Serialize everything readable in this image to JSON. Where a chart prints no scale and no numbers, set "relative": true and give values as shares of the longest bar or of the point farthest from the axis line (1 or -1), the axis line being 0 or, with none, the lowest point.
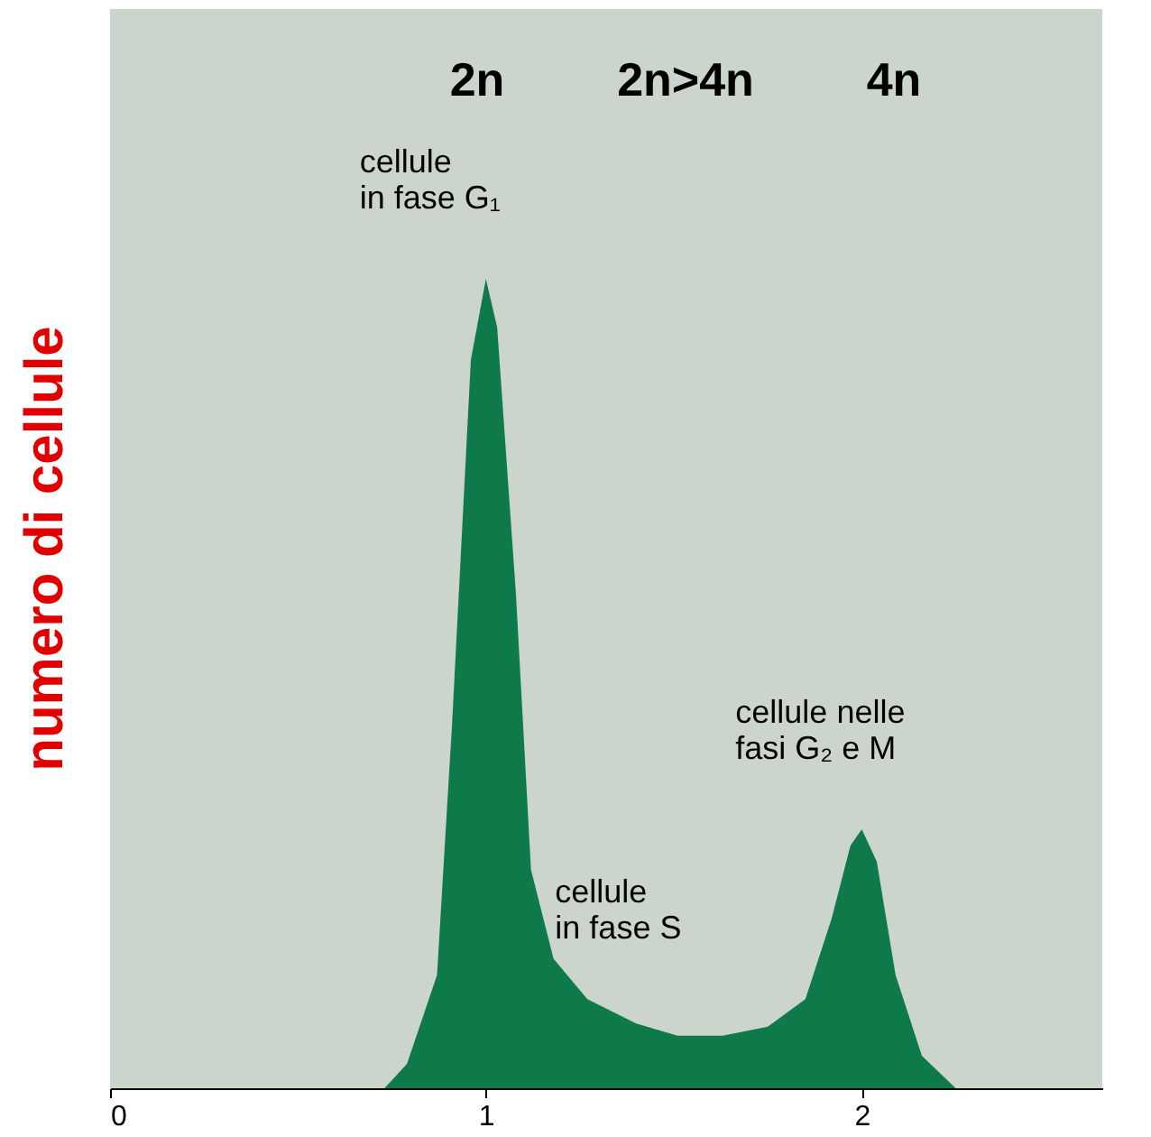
{
  "chart_data": {
    "type": "area",
    "relative": true,
    "ylabel": "numero di cellule",
    "xlim": [
      0,
      2.64
    ],
    "xticks": [
      0,
      1,
      2
    ],
    "grid": false,
    "x": [
      0.73,
      0.79,
      0.87,
      0.91,
      0.96,
      1.0,
      1.03,
      1.08,
      1.12,
      1.18,
      1.27,
      1.4,
      1.51,
      1.63,
      1.75,
      1.85,
      1.92,
      1.97,
      2.0,
      2.04,
      2.09,
      2.16,
      2.25
    ],
    "series": [
      {
        "color": "#0e7a4a",
        "values": [
          0,
          0.03,
          0.14,
          0.45,
          0.9,
          1,
          0.94,
          0.61,
          0.27,
          0.16,
          0.11,
          0.08,
          0.065,
          0.065,
          0.076,
          0.11,
          0.21,
          0.3,
          0.32,
          0.28,
          0.14,
          0.04,
          0
        ]
      }
    ],
    "annotations": [
      "2n",
      "2n>4n",
      "4n",
      {
        "text": "cellule\nin fase G₁",
        "x": 1.0,
        "y": 1
      },
      {
        "text": "cellule\nin fase S",
        "x": 1.52,
        "y": 0.065
      },
      {
        "text": "cellule nelle\nfasi G₂ e M",
        "x": 2.0,
        "y": 0.32
      }
    ]
  }
}
